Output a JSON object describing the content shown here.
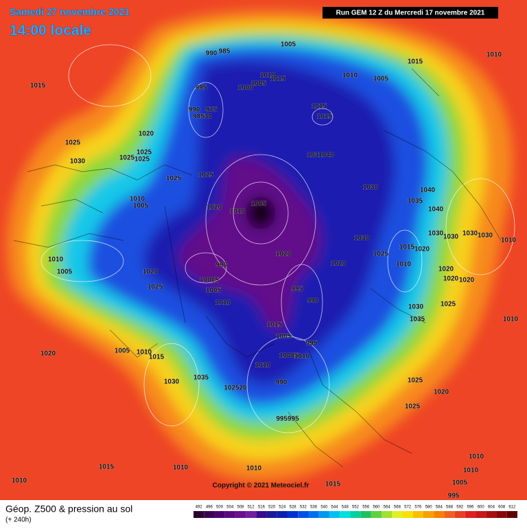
{
  "header": {
    "date": "Samedi 27 novembre 2021",
    "time": "14:00 locale",
    "run": "Run GEM 12 Z du Mercredi 17 novembre 2021"
  },
  "copyright": "Copyright © 2021 Meteociel.fr",
  "legend": {
    "title": "Géop. Z500 & pression au sol",
    "subtitle": "(+ 240h)",
    "scale": [
      492,
      496,
      500,
      504,
      508,
      512,
      516,
      520,
      524,
      528,
      532,
      536,
      540,
      544,
      548,
      552,
      556,
      560,
      564,
      568,
      572,
      576,
      580,
      584,
      588,
      592,
      596,
      600,
      604,
      608,
      612
    ],
    "colors": [
      "#2a0030",
      "#3a0050",
      "#4b0070",
      "#5a0a80",
      "#6a1090",
      "#7020a0",
      "#3a0a8a",
      "#1a1a9a",
      "#0a20b0",
      "#0030d0",
      "#0050e8",
      "#0070f0",
      "#0098f0",
      "#00c0f0",
      "#00e0e0",
      "#00d0a0",
      "#20c060",
      "#60d040",
      "#a0e030",
      "#e0f020",
      "#f8e000",
      "#f8c000",
      "#f8a000",
      "#f88000",
      "#f06020",
      "#e84020",
      "#e02020",
      "#c81818",
      "#a81010",
      "#880808",
      "#600000"
    ]
  },
  "labels": [
    "1005",
    "1010",
    "1015",
    "990",
    "985",
    "1015",
    "995",
    "1010",
    "1005",
    "1000",
    "1015",
    "1010",
    "1005",
    "990",
    "975",
    "98530",
    "1015",
    "1015",
    "1020",
    "1025",
    "1030",
    "1025",
    "1025",
    "1025",
    "1031040",
    "1025",
    "1025",
    "1030",
    "1040",
    "1010",
    "1005",
    "1035",
    "1005",
    "1020",
    "1010",
    "1040",
    "1030",
    "1030",
    "1030",
    "1030",
    "1010",
    "1030",
    "1020",
    "1015",
    "1020",
    "1025",
    "1010",
    "1010",
    "1020",
    "990",
    "1005",
    "1020",
    "1020",
    "1020",
    "1020",
    "10005",
    "1025",
    "995",
    "1005",
    "990",
    "1010",
    "1030",
    "1025",
    "1010",
    "1035",
    "1015",
    "1005",
    "995",
    "1005",
    "1010",
    "1015",
    "1020",
    "10005",
    "1010",
    "1010",
    "1030",
    "1035",
    "990",
    "102520",
    "1025",
    "1020",
    "1025",
    "995995",
    "1015",
    "1010",
    "1010",
    "1015",
    "1010",
    "1010",
    "1010",
    "1005",
    "995"
  ]
}
